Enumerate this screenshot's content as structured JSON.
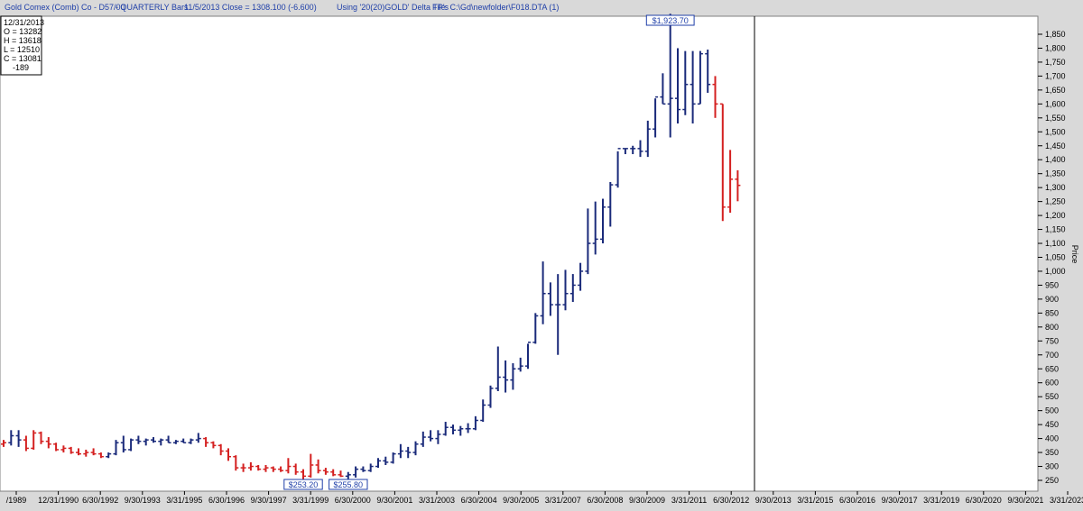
{
  "header": {
    "instrument": "Gold Comex (Comb) Co - D57/00",
    "bars": "- QUARTERLY Bars",
    "close_info": "11/5/2013 Close = 1308.100 (-6.600)",
    "using": "Using '20(20)GOLD' Delta TP's",
    "file": "File: C:\\Gd\\newfolder\\F018.DTA (1)"
  },
  "ohlc_box": {
    "date": "12/31/2013",
    "open": "O = 13282",
    "high": "H = 13618",
    "low": "L = 12510",
    "close": "C = 13081",
    "change": "-189"
  },
  "colors": {
    "up": "#1a2a7a",
    "down": "#d42020",
    "background": "#ffffff",
    "frame": "#d9d9d9"
  },
  "chart_data": {
    "type": "bar",
    "subtype": "ohlc",
    "ylabel": "Price",
    "ylim": [
      230,
      1900
    ],
    "yticks": [
      250,
      300,
      350,
      400,
      450,
      500,
      550,
      600,
      650,
      700,
      750,
      800,
      850,
      900,
      950,
      1000,
      1050,
      1100,
      1150,
      1200,
      1250,
      1300,
      1350,
      1400,
      1450,
      1500,
      1550,
      1600,
      1650,
      1700,
      1750,
      1800,
      1850
    ],
    "ytick_labels": [
      "250",
      "300",
      "350",
      "400",
      "450",
      "500",
      "550",
      "600",
      "650",
      "700",
      "750",
      "800",
      "850",
      "900",
      "950",
      "1,000",
      "1,050",
      "1,100",
      "1,150",
      "1,200",
      "1,250",
      "1,300",
      "1,350",
      "1,400",
      "1,450",
      "1,500",
      "1,550",
      "1,600",
      "1,650",
      "1,700",
      "1,750",
      "1,800",
      "1,850"
    ],
    "x_tick_labels": [
      "/1989",
      "12/31/1990",
      "6/30/1992",
      "9/30/1993",
      "3/31/1995",
      "6/30/1996",
      "9/30/1997",
      "3/31/1999",
      "6/30/2000",
      "9/30/2001",
      "3/31/2003",
      "6/30/2004",
      "9/30/2005",
      "3/31/2007",
      "6/30/2008",
      "9/30/2009",
      "3/31/2011",
      "6/30/2012",
      "9/30/2013",
      "3/31/2015",
      "6/30/2016",
      "9/30/2017",
      "3/31/2019",
      "6/30/2020",
      "9/30/2021",
      "3/31/2023"
    ],
    "annotations": [
      {
        "label": "$1,923.70",
        "value": 1923.7,
        "bar": 89
      },
      {
        "label": "$253.20",
        "value": 253.2,
        "bar": 40
      },
      {
        "label": "$255.80",
        "value": 255.8,
        "bar": 46
      }
    ],
    "ohlc": [
      [
        380,
        395,
        370,
        385,
        "d"
      ],
      [
        385,
        430,
        375,
        410,
        "u"
      ],
      [
        410,
        430,
        370,
        395,
        "u"
      ],
      [
        395,
        410,
        355,
        365,
        "d"
      ],
      [
        365,
        430,
        360,
        420,
        "d"
      ],
      [
        420,
        425,
        380,
        390,
        "d"
      ],
      [
        390,
        405,
        365,
        380,
        "d"
      ],
      [
        380,
        385,
        355,
        360,
        "d"
      ],
      [
        360,
        375,
        350,
        365,
        "d"
      ],
      [
        365,
        370,
        345,
        350,
        "d"
      ],
      [
        350,
        365,
        340,
        345,
        "d"
      ],
      [
        345,
        360,
        335,
        350,
        "d"
      ],
      [
        350,
        365,
        340,
        345,
        "d"
      ],
      [
        345,
        350,
        330,
        335,
        "d"
      ],
      [
        335,
        350,
        330,
        345,
        "u"
      ],
      [
        345,
        395,
        340,
        385,
        "u"
      ],
      [
        385,
        410,
        350,
        360,
        "u"
      ],
      [
        360,
        400,
        355,
        395,
        "u"
      ],
      [
        395,
        410,
        380,
        390,
        "u"
      ],
      [
        390,
        400,
        375,
        395,
        "u"
      ],
      [
        395,
        405,
        385,
        390,
        "u"
      ],
      [
        390,
        400,
        375,
        395,
        "u"
      ],
      [
        395,
        410,
        385,
        385,
        "u"
      ],
      [
        385,
        395,
        380,
        390,
        "u"
      ],
      [
        390,
        400,
        385,
        385,
        "u"
      ],
      [
        385,
        400,
        380,
        395,
        "u"
      ],
      [
        395,
        420,
        385,
        400,
        "u"
      ],
      [
        400,
        405,
        370,
        385,
        "d"
      ],
      [
        385,
        390,
        365,
        375,
        "d"
      ],
      [
        375,
        380,
        340,
        355,
        "d"
      ],
      [
        355,
        365,
        320,
        335,
        "d"
      ],
      [
        335,
        340,
        285,
        295,
        "d"
      ],
      [
        295,
        310,
        280,
        295,
        "d"
      ],
      [
        295,
        315,
        285,
        300,
        "d"
      ],
      [
        300,
        305,
        285,
        290,
        "d"
      ],
      [
        290,
        305,
        280,
        295,
        "d"
      ],
      [
        295,
        300,
        280,
        290,
        "d"
      ],
      [
        290,
        300,
        280,
        285,
        "d"
      ],
      [
        285,
        330,
        275,
        300,
        "d"
      ],
      [
        300,
        310,
        270,
        280,
        "d"
      ],
      [
        280,
        290,
        253,
        265,
        "d"
      ],
      [
        265,
        345,
        260,
        305,
        "d"
      ],
      [
        305,
        325,
        275,
        285,
        "d"
      ],
      [
        285,
        295,
        270,
        280,
        "d"
      ],
      [
        280,
        290,
        265,
        270,
        "d"
      ],
      [
        270,
        285,
        262,
        265,
        "d"
      ],
      [
        265,
        280,
        255,
        270,
        "u"
      ],
      [
        270,
        300,
        260,
        290,
        "u"
      ],
      [
        290,
        300,
        280,
        285,
        "u"
      ],
      [
        285,
        310,
        280,
        300,
        "u"
      ],
      [
        300,
        330,
        295,
        320,
        "u"
      ],
      [
        320,
        335,
        305,
        315,
        "u"
      ],
      [
        315,
        350,
        310,
        345,
        "u"
      ],
      [
        345,
        380,
        330,
        355,
        "u"
      ],
      [
        355,
        370,
        330,
        350,
        "u"
      ],
      [
        350,
        390,
        340,
        380,
        "u"
      ],
      [
        380,
        425,
        370,
        405,
        "u"
      ],
      [
        405,
        430,
        390,
        400,
        "u"
      ],
      [
        400,
        430,
        380,
        415,
        "u"
      ],
      [
        415,
        460,
        410,
        440,
        "u"
      ],
      [
        440,
        450,
        415,
        430,
        "u"
      ],
      [
        430,
        445,
        410,
        435,
        "u"
      ],
      [
        435,
        455,
        420,
        435,
        "u"
      ],
      [
        435,
        480,
        430,
        465,
        "u"
      ],
      [
        465,
        540,
        460,
        520,
        "u"
      ],
      [
        520,
        590,
        510,
        580,
        "u"
      ],
      [
        580,
        730,
        570,
        620,
        "u"
      ],
      [
        620,
        680,
        565,
        610,
        "u"
      ],
      [
        610,
        670,
        575,
        650,
        "u"
      ],
      [
        650,
        690,
        640,
        660,
        "u"
      ],
      [
        660,
        740,
        650,
        745,
        "u"
      ],
      [
        745,
        850,
        740,
        840,
        "u"
      ],
      [
        840,
        1035,
        810,
        920,
        "u"
      ],
      [
        920,
        960,
        840,
        880,
        "u"
      ],
      [
        880,
        990,
        700,
        880,
        "u"
      ],
      [
        880,
        1005,
        860,
        920,
        "u"
      ],
      [
        920,
        990,
        890,
        950,
        "u"
      ],
      [
        950,
        1030,
        930,
        1000,
        "u"
      ],
      [
        1000,
        1225,
        990,
        1100,
        "u"
      ],
      [
        1100,
        1250,
        1060,
        1115,
        "u"
      ],
      [
        1115,
        1260,
        1100,
        1230,
        "u"
      ],
      [
        1230,
        1320,
        1160,
        1310,
        "u"
      ],
      [
        1310,
        1430,
        1300,
        1440,
        "u"
      ],
      [
        1440,
        1440,
        1420,
        1440,
        "u"
      ],
      [
        1440,
        1450,
        1420,
        1440,
        "u"
      ],
      [
        1440,
        1470,
        1410,
        1430,
        "u"
      ],
      [
        1430,
        1540,
        1410,
        1510,
        "u"
      ],
      [
        1510,
        1620,
        1480,
        1625,
        "u"
      ],
      [
        1625,
        1710,
        1600,
        1600,
        "u"
      ],
      [
        1600,
        1923.7,
        1480,
        1620,
        "u"
      ],
      [
        1620,
        1800,
        1530,
        1580,
        "u"
      ],
      [
        1580,
        1790,
        1560,
        1670,
        "u"
      ],
      [
        1670,
        1790,
        1530,
        1600,
        "u"
      ],
      [
        1600,
        1790,
        1600,
        1780,
        "u"
      ],
      [
        1780,
        1795,
        1640,
        1670,
        "u"
      ],
      [
        1670,
        1700,
        1550,
        1600,
        "d"
      ],
      [
        1600,
        1600,
        1180,
        1230,
        "d"
      ],
      [
        1230,
        1435,
        1210,
        1330,
        "d"
      ],
      [
        1330,
        1362,
        1251,
        1308,
        "d"
      ]
    ]
  }
}
